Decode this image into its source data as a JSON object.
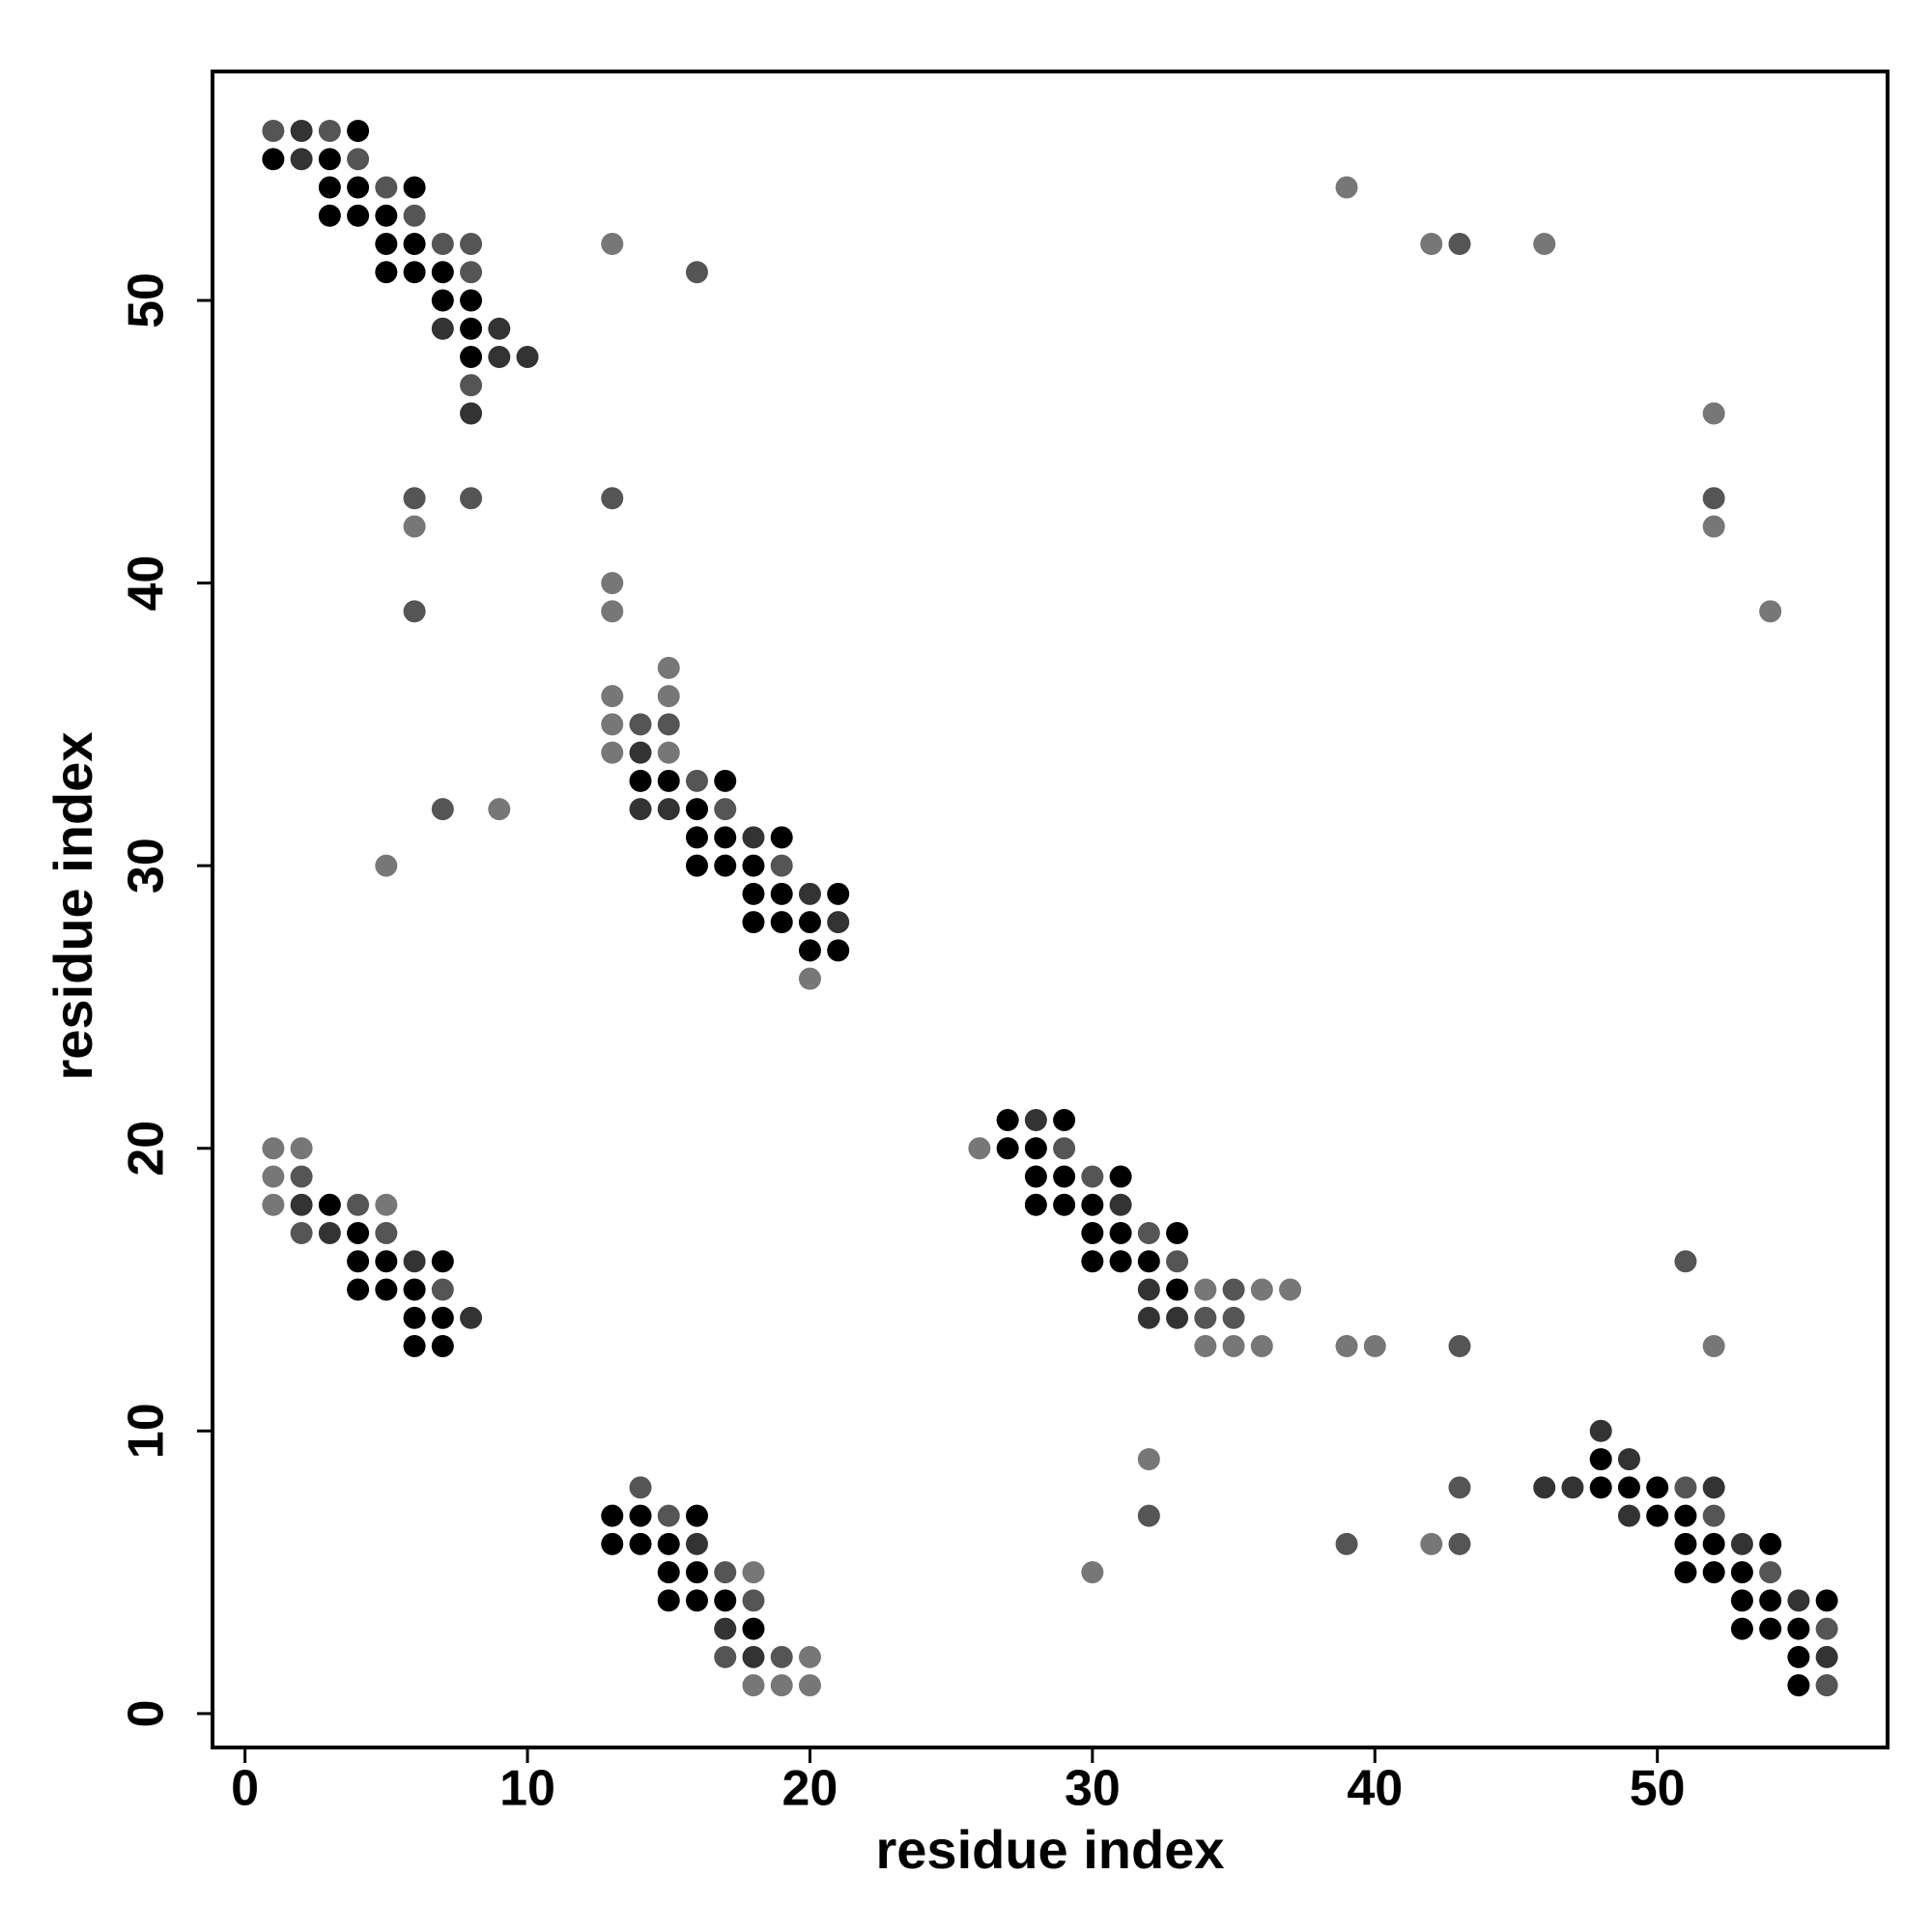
{
  "chart_data": {
    "type": "scatter",
    "x_label": "residue index",
    "y_label": "residue index",
    "xlim": [
      -1.15,
      58.15
    ],
    "ylim": [
      -1.2,
      58.1
    ],
    "xticks": [
      0,
      10,
      20,
      30,
      40,
      50
    ],
    "yticks": [
      0,
      10,
      20,
      30,
      40,
      50
    ],
    "grid": false,
    "series": [
      {
        "color": "#000000",
        "x": [
          4,
          1,
          3,
          3,
          4,
          6,
          3,
          4,
          5,
          5,
          6,
          5,
          6,
          7,
          7,
          8,
          8,
          8,
          14,
          15,
          17,
          16,
          16,
          17,
          19,
          16,
          17,
          18,
          18,
          19,
          21,
          18,
          19,
          20,
          20,
          21,
          27,
          29,
          27,
          28,
          28,
          29,
          31,
          3,
          28,
          29,
          30,
          4,
          30,
          31,
          33,
          4,
          5,
          7,
          30,
          31,
          32,
          4,
          5,
          6,
          33,
          6,
          7,
          6,
          7,
          48,
          48,
          49,
          50,
          13,
          14,
          16,
          50,
          51,
          13,
          14,
          15,
          51,
          52,
          54,
          15,
          16,
          51,
          52,
          53,
          15,
          16,
          17,
          53,
          54,
          56,
          18,
          53,
          54,
          55,
          55,
          55
        ],
        "values": [
          56,
          55,
          55,
          54,
          54,
          54,
          53,
          53,
          53,
          52,
          52,
          51,
          51,
          51,
          50,
          50,
          49,
          48,
          33,
          33,
          33,
          32,
          31,
          31,
          31,
          30,
          30,
          30,
          29,
          29,
          29,
          28,
          28,
          28,
          27,
          27,
          21,
          21,
          20,
          20,
          19,
          19,
          19,
          18,
          18,
          18,
          18,
          17,
          17,
          17,
          17,
          16,
          16,
          16,
          16,
          16,
          16,
          15,
          15,
          15,
          15,
          14,
          14,
          13,
          13,
          9,
          8,
          8,
          8,
          7,
          7,
          7,
          7,
          7,
          6,
          6,
          6,
          6,
          6,
          6,
          5,
          5,
          5,
          5,
          5,
          4,
          4,
          4,
          4,
          4,
          4,
          3,
          3,
          3,
          3,
          2,
          1
        ]
      },
      {
        "color": "#333333",
        "x": [
          2,
          2,
          7,
          9,
          9,
          10,
          8,
          14,
          14,
          15,
          18,
          20,
          21,
          28,
          2,
          31,
          3,
          6,
          32,
          8,
          32,
          33,
          48,
          49,
          46,
          47,
          52,
          49,
          16,
          53,
          55,
          17,
          18,
          56
        ],
        "values": [
          56,
          55,
          49,
          49,
          48,
          48,
          46,
          34,
          32,
          32,
          31,
          29,
          28,
          21,
          18,
          18,
          17,
          16,
          15,
          14,
          14,
          14,
          10,
          9,
          8,
          8,
          8,
          7,
          6,
          6,
          4,
          3,
          2,
          2
        ]
      },
      {
        "color": "#555555",
        "x": [
          1,
          3,
          4,
          5,
          6,
          7,
          8,
          43,
          8,
          16,
          8,
          6,
          8,
          13,
          52,
          6,
          14,
          15,
          16,
          7,
          17,
          19,
          29,
          2,
          30,
          4,
          2,
          5,
          32,
          33,
          51,
          7,
          35,
          34,
          35,
          43,
          14,
          43,
          51,
          15,
          32,
          52,
          39,
          43,
          17,
          54,
          18,
          56,
          17,
          19,
          56
        ],
        "values": [
          56,
          56,
          55,
          54,
          53,
          52,
          52,
          52,
          51,
          51,
          47,
          43,
          43,
          43,
          43,
          39,
          35,
          35,
          33,
          32,
          32,
          30,
          20,
          19,
          19,
          18,
          17,
          17,
          17,
          16,
          16,
          15,
          15,
          14,
          14,
          13,
          8,
          8,
          8,
          7,
          7,
          7,
          6,
          6,
          5,
          5,
          4,
          3,
          2,
          2,
          1
        ]
      },
      {
        "color": "#777777",
        "x": [
          39,
          13,
          42,
          46,
          52,
          6,
          52,
          13,
          13,
          54,
          15,
          13,
          15,
          13,
          13,
          15,
          9,
          5,
          20,
          1,
          2,
          26,
          1,
          1,
          5,
          34,
          36,
          37,
          34,
          35,
          36,
          39,
          40,
          52,
          32,
          42,
          18,
          30,
          20,
          18,
          19,
          20
        ],
        "values": [
          54,
          52,
          52,
          52,
          46,
          42,
          42,
          40,
          39,
          39,
          37,
          36,
          36,
          35,
          34,
          34,
          32,
          30,
          26,
          20,
          20,
          20,
          19,
          18,
          18,
          15,
          15,
          15,
          13,
          13,
          13,
          13,
          13,
          13,
          9,
          6,
          5,
          5,
          2,
          1,
          1,
          1
        ]
      }
    ]
  }
}
